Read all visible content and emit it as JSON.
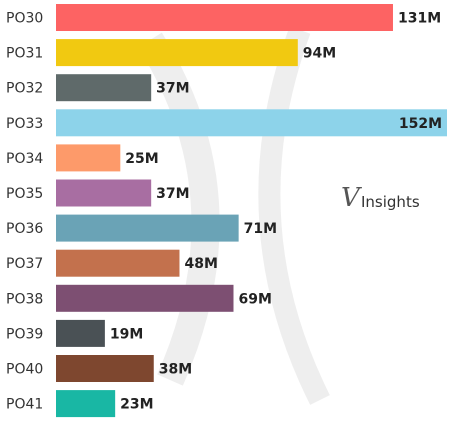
{
  "chart_data": {
    "type": "bar",
    "orientation": "horizontal",
    "categories": [
      "PO30",
      "PO31",
      "PO32",
      "PO33",
      "PO34",
      "PO35",
      "PO36",
      "PO37",
      "PO38",
      "PO39",
      "PO40",
      "PO41"
    ],
    "values": [
      131,
      94,
      37,
      152,
      25,
      37,
      71,
      48,
      69,
      19,
      38,
      23
    ],
    "value_labels": [
      "131M",
      "94M",
      "37M",
      "152M",
      "25M",
      "37M",
      "71M",
      "48M",
      "69M",
      "19M",
      "38M",
      "23M"
    ],
    "colors": [
      "#fd6363",
      "#f1c911",
      "#5f6a6a",
      "#8dd3ea",
      "#fd9a6a",
      "#a86ea2",
      "#6aa3b6",
      "#c3714d",
      "#7d4f72",
      "#4a5155",
      "#7e472f",
      "#19b7a4"
    ],
    "value_label_inside": [
      false,
      false,
      false,
      true,
      false,
      false,
      false,
      false,
      false,
      false,
      false,
      false
    ],
    "xlim": [
      0,
      152
    ],
    "title": "",
    "xlabel": "",
    "ylabel": "",
    "grid": false,
    "legend": "none"
  },
  "watermark": {
    "brand_text": "Insights",
    "brand_initial": "V"
  }
}
